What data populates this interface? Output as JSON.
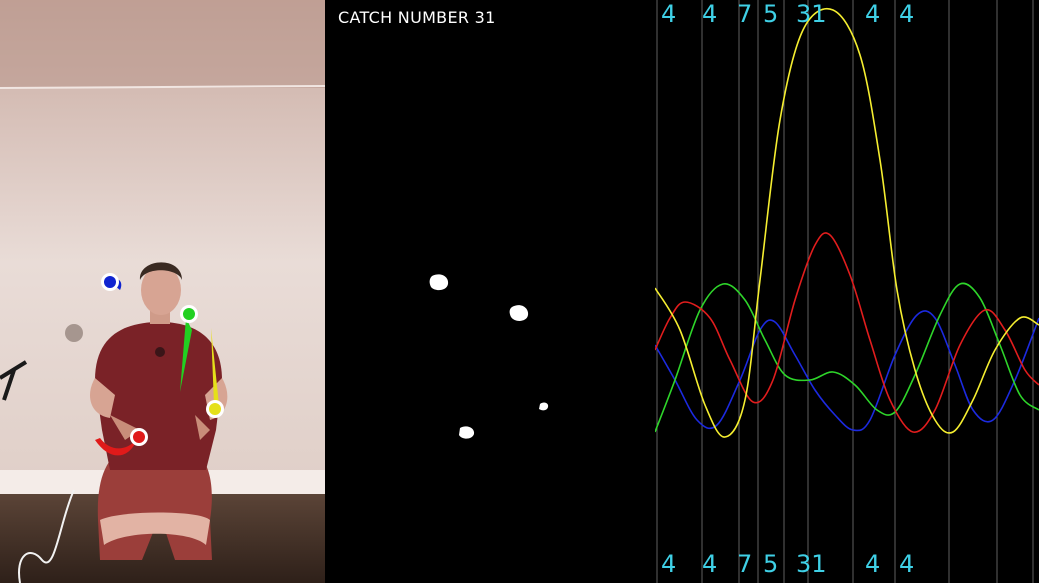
{
  "video": {
    "tracked_balls": [
      {
        "name": "blue-ball",
        "color": "#1024d0"
      },
      {
        "name": "green-ball",
        "color": "#22d021"
      },
      {
        "name": "yellow-ball",
        "color": "#e5e01a"
      },
      {
        "name": "red-ball",
        "color": "#e01a1a"
      }
    ]
  },
  "mask": {
    "catch_label": "CATCH NUMBER 31"
  },
  "graph": {
    "siteswap": [
      "4",
      "4",
      "7",
      "5",
      "31",
      "4",
      "4"
    ],
    "colors": {
      "yellow": "#f5ee30",
      "red": "#e11d1d",
      "green": "#2ed52a",
      "blue": "#1c2ae0",
      "grid": "#7a7a7a",
      "label": "#3fd0e6"
    }
  }
}
